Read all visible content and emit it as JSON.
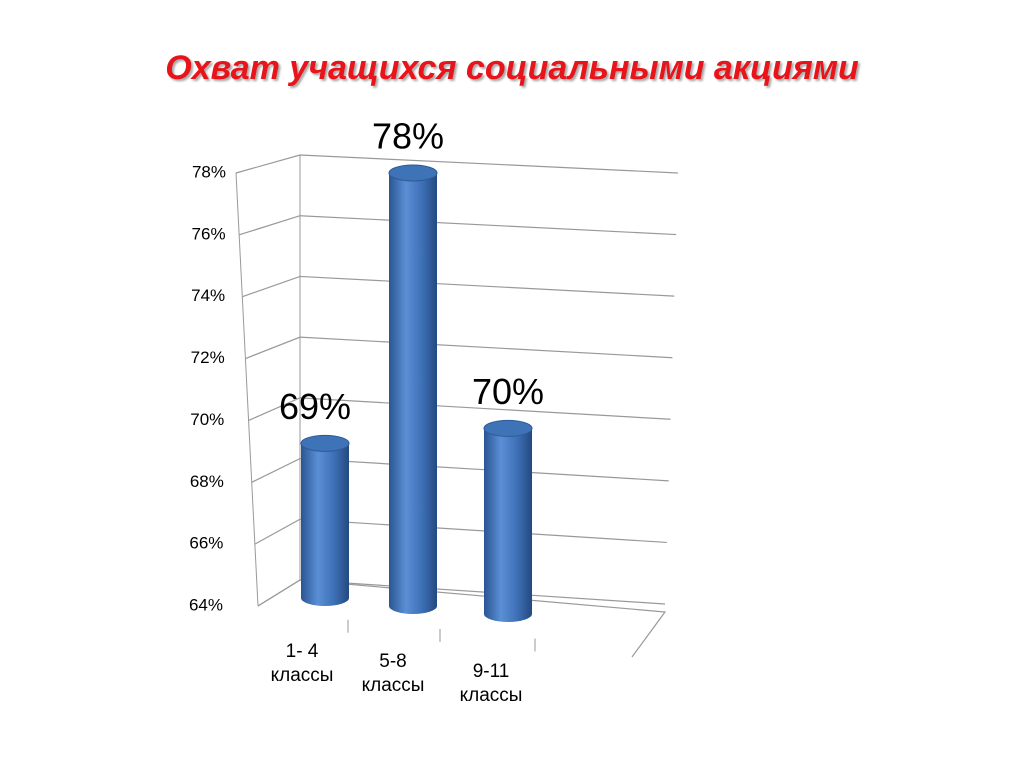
{
  "chart_data": {
    "type": "bar3d",
    "title": "Охват учащихся социальными акциями",
    "categories": [
      "1- 4 классы",
      "5-8 классы",
      "9-11 классы"
    ],
    "values": [
      69,
      78,
      70
    ],
    "value_labels": [
      "69%",
      "78%",
      "70%"
    ],
    "color": "#3f73b8",
    "ylim": [
      64,
      78
    ],
    "yticks": [
      {
        "value": 64,
        "label": "64%"
      },
      {
        "value": 66,
        "label": "66%"
      },
      {
        "value": 68,
        "label": "68%"
      },
      {
        "value": 70,
        "label": "70%"
      },
      {
        "value": 72,
        "label": "72%"
      },
      {
        "value": 74,
        "label": "74%"
      },
      {
        "value": 76,
        "label": "76%"
      },
      {
        "value": 78,
        "label": "78%"
      }
    ],
    "grid": true
  }
}
